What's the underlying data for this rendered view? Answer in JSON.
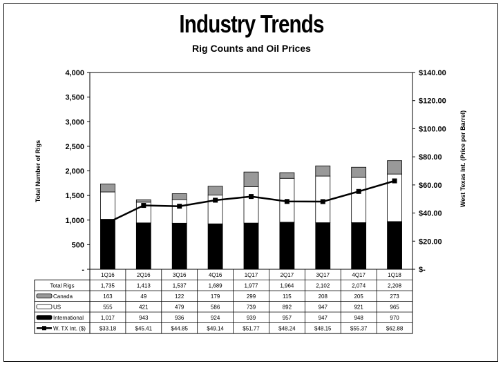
{
  "chart_data": {
    "type": "bar",
    "title": "Industry Trends",
    "subtitle": "Rig Counts and Oil Prices",
    "ylabel": "Total Number of Rigs",
    "y2label": "West Texas Int. (Price per Barrel)",
    "ylim": [
      0,
      4000
    ],
    "y2lim": [
      0,
      140
    ],
    "yticks": [
      "-",
      "500",
      "1,000",
      "1,500",
      "2,000",
      "2,500",
      "3,000",
      "3,500",
      "4,000"
    ],
    "y2ticks": [
      "$-",
      "$20.00",
      "$40.00",
      "$60.00",
      "$80.00",
      "$100.00",
      "$120.00",
      "$140.00"
    ],
    "stacked": true,
    "categories": [
      "1Q16",
      "2Q16",
      "3Q16",
      "4Q16",
      "1Q17",
      "2Q17",
      "3Q17",
      "4Q17",
      "1Q18"
    ],
    "total_label": "Total Rigs",
    "totals": [
      "1,735",
      "1,413",
      "1,537",
      "1,689",
      "1,977",
      "1,964",
      "2,102",
      "2,074",
      "2,208"
    ],
    "series": [
      {
        "name": "International",
        "kind": "bar",
        "color": "#000000",
        "values": [
          1017,
          943,
          936,
          924,
          939,
          957,
          947,
          948,
          970
        ],
        "labels": [
          "1,017",
          "943",
          "936",
          "924",
          "939",
          "957",
          "947",
          "948",
          "970"
        ]
      },
      {
        "name": "US",
        "kind": "bar",
        "color": "#ffffff",
        "values": [
          555,
          421,
          479,
          586,
          739,
          892,
          947,
          921,
          965
        ],
        "labels": [
          "555",
          "421",
          "479",
          "586",
          "739",
          "892",
          "947",
          "921",
          "965"
        ]
      },
      {
        "name": "Canada",
        "kind": "bar",
        "color": "#999999",
        "values": [
          163,
          49,
          122,
          179,
          299,
          115,
          208,
          205,
          273
        ],
        "labels": [
          "163",
          "49",
          "122",
          "179",
          "299",
          "115",
          "208",
          "205",
          "273"
        ]
      },
      {
        "name": "W. TX Int. ($)",
        "kind": "line",
        "axis": "right",
        "color": "#000000",
        "values": [
          33.18,
          45.41,
          44.85,
          49.14,
          51.77,
          48.24,
          48.15,
          55.37,
          62.88
        ],
        "labels": [
          "$33.18",
          "$45.41",
          "$44.85",
          "$49.14",
          "$51.77",
          "$48.24",
          "$48.15",
          "$55.37",
          "$62.88"
        ]
      }
    ],
    "table_row_order": [
      "Canada",
      "US",
      "International",
      "W. TX Int. ($)"
    ],
    "grid": false,
    "legend": "data-table"
  }
}
